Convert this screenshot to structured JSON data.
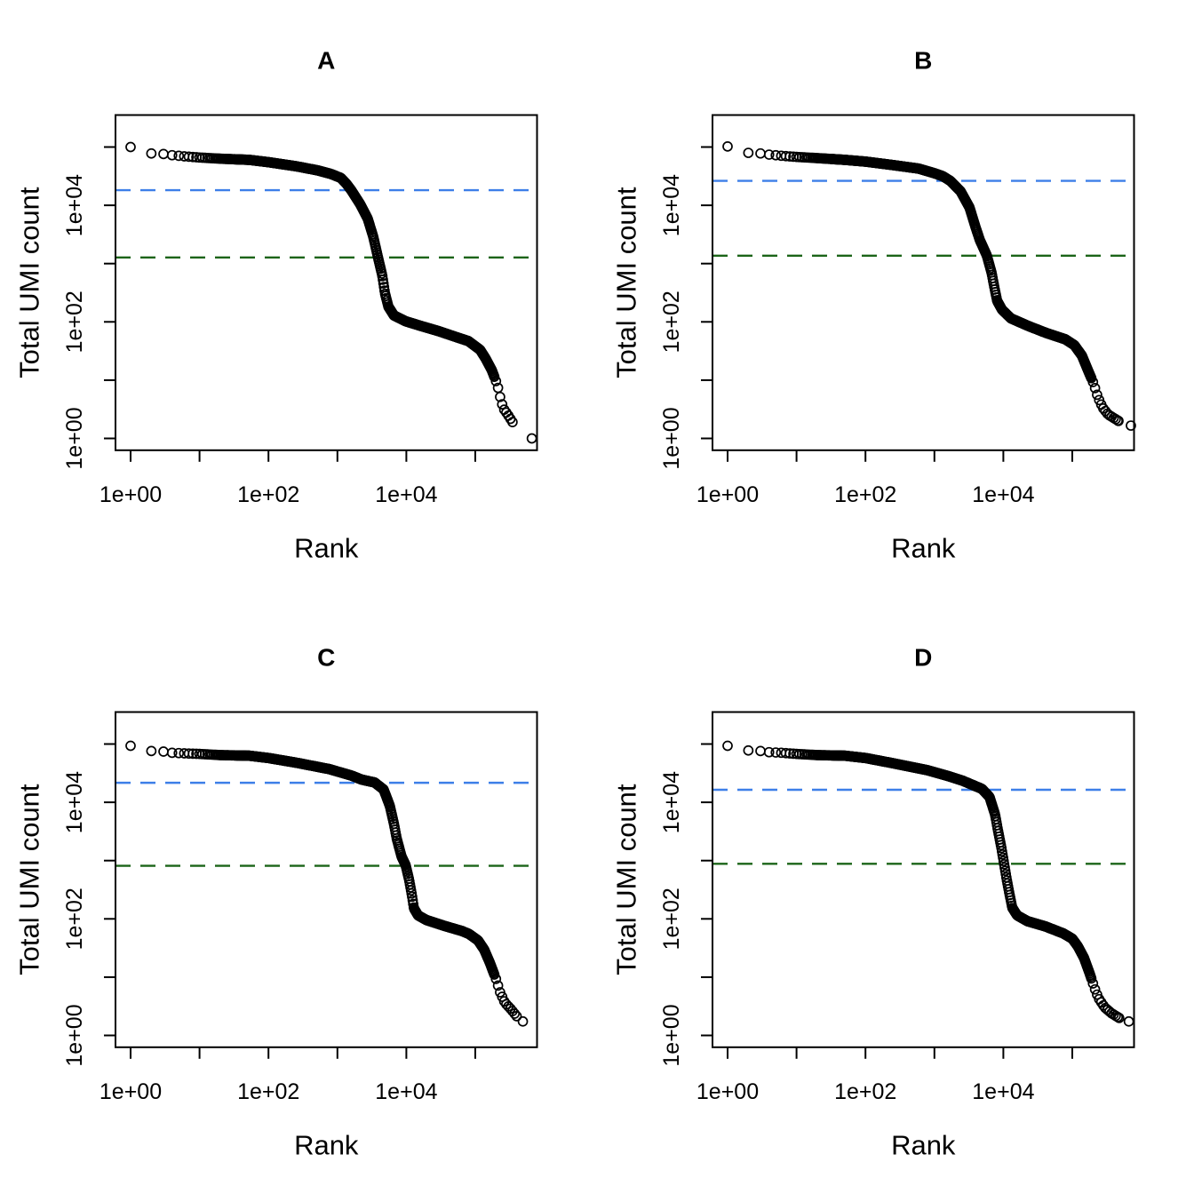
{
  "figure": {
    "background": "#ffffff",
    "layout": "2x2 grid of barcode-rank knee plots (R base graphics style)",
    "point_color": "#000000",
    "axes": {
      "x_scale": "log10",
      "y_scale": "log10",
      "xlim_log10": [
        -0.22,
        5.9
      ],
      "ylim_log10": [
        -0.2,
        5.55
      ],
      "x_ticks": [
        {
          "log": 0,
          "label": "1e+00"
        },
        {
          "log": 1,
          "label": ""
        },
        {
          "log": 2,
          "label": "1e+02"
        },
        {
          "log": 3,
          "label": ""
        },
        {
          "log": 4,
          "label": "1e+04"
        },
        {
          "log": 5,
          "label": ""
        }
      ],
      "y_ticks": [
        {
          "log": 0,
          "label": "1e+00"
        },
        {
          "log": 1,
          "label": ""
        },
        {
          "log": 2,
          "label": "1e+02"
        },
        {
          "log": 3,
          "label": ""
        },
        {
          "log": 4,
          "label": "1e+04"
        },
        {
          "log": 5,
          "label": ""
        }
      ]
    },
    "colors": {
      "knee_line": "#3D7FE8",
      "inflection_line": "#1B6418"
    }
  },
  "chart_data": [
    {
      "panel": "A",
      "type": "scatter",
      "title": "A",
      "xlabel": "Rank",
      "ylabel": "Total UMI count",
      "x_scale": "log10",
      "y_scale": "log10",
      "hlines": [
        {
          "name": "knee",
          "value": 18000,
          "log10": 4.26,
          "color": "#3D7FE8",
          "style": "dashed"
        },
        {
          "name": "inflection",
          "value": 1300,
          "log10": 3.105,
          "color": "#1B6418",
          "style": "dashed"
        }
      ],
      "curve_log10_points": [
        [
          0,
          5.0
        ],
        [
          0.3,
          4.89
        ],
        [
          0.48,
          4.88
        ],
        [
          0.6,
          4.86
        ],
        [
          0.78,
          4.84
        ],
        [
          1.0,
          4.82
        ],
        [
          1.3,
          4.8
        ],
        [
          1.72,
          4.78
        ],
        [
          2.0,
          4.74
        ],
        [
          2.4,
          4.67
        ],
        [
          2.71,
          4.6
        ],
        [
          2.9,
          4.54
        ],
        [
          3.05,
          4.47
        ],
        [
          3.13,
          4.37
        ],
        [
          3.2,
          4.26
        ],
        [
          3.33,
          4.02
        ],
        [
          3.44,
          3.77
        ],
        [
          3.52,
          3.46
        ],
        [
          3.59,
          3.1
        ],
        [
          3.65,
          2.8
        ],
        [
          3.69,
          2.49
        ],
        [
          3.74,
          2.26
        ],
        [
          3.82,
          2.11
        ],
        [
          3.99,
          2.01
        ],
        [
          4.21,
          1.93
        ],
        [
          4.47,
          1.84
        ],
        [
          4.72,
          1.74
        ],
        [
          4.9,
          1.67
        ],
        [
          5.07,
          1.52
        ],
        [
          5.15,
          1.37
        ],
        [
          5.24,
          1.17
        ],
        [
          5.32,
          0.92
        ],
        [
          5.37,
          0.66
        ],
        [
          5.41,
          0.51
        ],
        [
          5.47,
          0.41
        ],
        [
          5.54,
          0.28
        ]
      ],
      "end_point_log10": [
        5.82,
        0.0
      ]
    },
    {
      "panel": "B",
      "type": "scatter",
      "title": "B",
      "xlabel": "Rank",
      "ylabel": "Total UMI count",
      "x_scale": "log10",
      "y_scale": "log10",
      "hlines": [
        {
          "name": "knee",
          "value": 26000,
          "log10": 4.42,
          "color": "#3D7FE8",
          "style": "dashed"
        },
        {
          "name": "inflection",
          "value": 1400,
          "log10": 3.135,
          "color": "#1B6418",
          "style": "dashed"
        }
      ],
      "curve_log10_points": [
        [
          0,
          5.01
        ],
        [
          0.3,
          4.9
        ],
        [
          0.48,
          4.89
        ],
        [
          0.6,
          4.87
        ],
        [
          0.78,
          4.85
        ],
        [
          1.0,
          4.83
        ],
        [
          1.3,
          4.81
        ],
        [
          1.7,
          4.78
        ],
        [
          2.0,
          4.75
        ],
        [
          2.4,
          4.69
        ],
        [
          2.77,
          4.63
        ],
        [
          3.0,
          4.55
        ],
        [
          3.12,
          4.5
        ],
        [
          3.23,
          4.42
        ],
        [
          3.38,
          4.24
        ],
        [
          3.51,
          3.96
        ],
        [
          3.59,
          3.65
        ],
        [
          3.66,
          3.4
        ],
        [
          3.76,
          3.14
        ],
        [
          3.83,
          2.84
        ],
        [
          3.87,
          2.59
        ],
        [
          3.91,
          2.36
        ],
        [
          3.98,
          2.21
        ],
        [
          4.11,
          2.06
        ],
        [
          4.36,
          1.93
        ],
        [
          4.62,
          1.81
        ],
        [
          4.9,
          1.7
        ],
        [
          5.03,
          1.6
        ],
        [
          5.14,
          1.42
        ],
        [
          5.22,
          1.19
        ],
        [
          5.31,
          0.94
        ],
        [
          5.37,
          0.71
        ],
        [
          5.44,
          0.53
        ],
        [
          5.52,
          0.41
        ],
        [
          5.67,
          0.3
        ]
      ],
      "end_point_log10": [
        5.85,
        0.22
      ]
    },
    {
      "panel": "C",
      "type": "scatter",
      "title": "C",
      "xlabel": "Rank",
      "ylabel": "Total UMI count",
      "x_scale": "log10",
      "y_scale": "log10",
      "hlines": [
        {
          "name": "knee",
          "value": 22000,
          "log10": 4.335,
          "color": "#3D7FE8",
          "style": "dashed"
        },
        {
          "name": "inflection",
          "value": 810,
          "log10": 2.91,
          "color": "#1B6418",
          "style": "dashed"
        }
      ],
      "curve_log10_points": [
        [
          0,
          4.97
        ],
        [
          0.3,
          4.88
        ],
        [
          0.48,
          4.87
        ],
        [
          0.6,
          4.85
        ],
        [
          0.78,
          4.84
        ],
        [
          1.0,
          4.83
        ],
        [
          1.3,
          4.81
        ],
        [
          1.72,
          4.8
        ],
        [
          2.0,
          4.76
        ],
        [
          2.4,
          4.68
        ],
        [
          2.88,
          4.57
        ],
        [
          3.2,
          4.46
        ],
        [
          3.35,
          4.39
        ],
        [
          3.54,
          4.34
        ],
        [
          3.67,
          4.22
        ],
        [
          3.76,
          3.94
        ],
        [
          3.82,
          3.63
        ],
        [
          3.86,
          3.38
        ],
        [
          3.93,
          3.07
        ],
        [
          3.99,
          2.92
        ],
        [
          4.04,
          2.67
        ],
        [
          4.08,
          2.41
        ],
        [
          4.11,
          2.18
        ],
        [
          4.17,
          2.06
        ],
        [
          4.29,
          1.98
        ],
        [
          4.55,
          1.88
        ],
        [
          4.81,
          1.79
        ],
        [
          4.91,
          1.74
        ],
        [
          5.04,
          1.63
        ],
        [
          5.13,
          1.47
        ],
        [
          5.21,
          1.25
        ],
        [
          5.3,
          0.97
        ],
        [
          5.36,
          0.74
        ],
        [
          5.43,
          0.56
        ],
        [
          5.51,
          0.46
        ],
        [
          5.6,
          0.33
        ]
      ],
      "end_point_log10": [
        5.69,
        0.24
      ]
    },
    {
      "panel": "D",
      "type": "scatter",
      "title": "D",
      "xlabel": "Rank",
      "ylabel": "Total UMI count",
      "x_scale": "log10",
      "y_scale": "log10",
      "hlines": [
        {
          "name": "knee",
          "value": 16000,
          "log10": 4.215,
          "color": "#3D7FE8",
          "style": "dashed"
        },
        {
          "name": "inflection",
          "value": 880,
          "log10": 2.945,
          "color": "#1B6418",
          "style": "dashed"
        }
      ],
      "curve_log10_points": [
        [
          0,
          4.97
        ],
        [
          0.3,
          4.89
        ],
        [
          0.48,
          4.88
        ],
        [
          0.6,
          4.86
        ],
        [
          0.78,
          4.85
        ],
        [
          1.0,
          4.83
        ],
        [
          1.3,
          4.81
        ],
        [
          1.7,
          4.8
        ],
        [
          2.0,
          4.76
        ],
        [
          2.4,
          4.67
        ],
        [
          2.9,
          4.55
        ],
        [
          3.2,
          4.45
        ],
        [
          3.41,
          4.37
        ],
        [
          3.55,
          4.3
        ],
        [
          3.69,
          4.23
        ],
        [
          3.8,
          4.09
        ],
        [
          3.88,
          3.79
        ],
        [
          3.92,
          3.53
        ],
        [
          3.97,
          3.23
        ],
        [
          4.01,
          2.95
        ],
        [
          4.05,
          2.67
        ],
        [
          4.09,
          2.42
        ],
        [
          4.13,
          2.19
        ],
        [
          4.2,
          2.06
        ],
        [
          4.35,
          1.96
        ],
        [
          4.61,
          1.87
        ],
        [
          4.87,
          1.75
        ],
        [
          5.0,
          1.66
        ],
        [
          5.08,
          1.53
        ],
        [
          5.17,
          1.33
        ],
        [
          5.25,
          1.07
        ],
        [
          5.32,
          0.82
        ],
        [
          5.38,
          0.64
        ],
        [
          5.47,
          0.48
        ],
        [
          5.57,
          0.38
        ],
        [
          5.68,
          0.3
        ]
      ],
      "end_point_log10": [
        5.82,
        0.24
      ]
    }
  ]
}
